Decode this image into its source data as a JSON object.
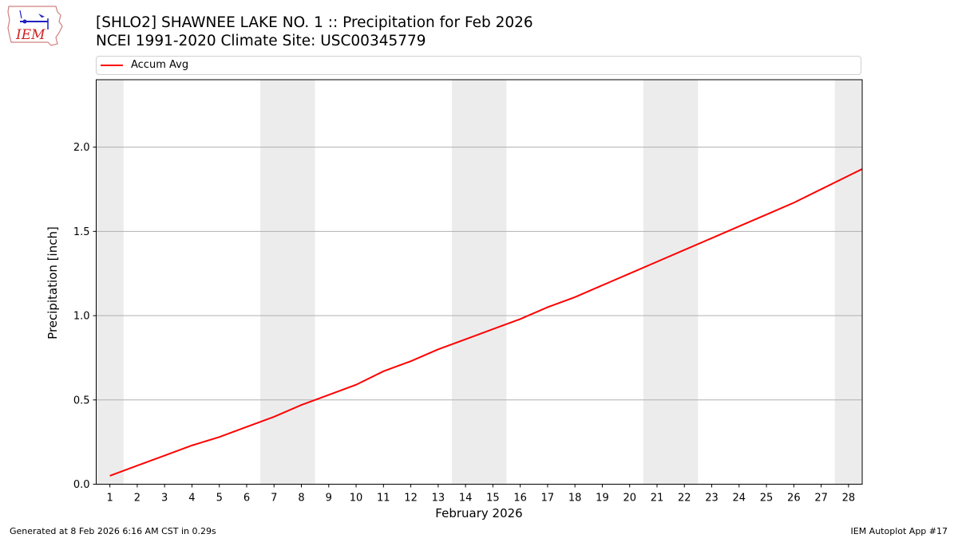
{
  "header": {
    "title_line1": "[SHLO2] SHAWNEE LAKE NO. 1 :: Precipitation for Feb 2026",
    "title_line2": "NCEI 1991-2020 Climate Site: USC00345779",
    "logo_text": "IEM"
  },
  "legend": {
    "items": [
      {
        "label": "Accum Avg",
        "color": "#ff0000"
      }
    ]
  },
  "footer": {
    "left": "Generated at 8 Feb 2026 6:16 AM CST in 0.29s",
    "right": "IEM Autoplot App #17"
  },
  "chart_data": {
    "type": "line",
    "title": "[SHLO2] SHAWNEE LAKE NO. 1 :: Precipitation for Feb 2026",
    "subtitle": "NCEI 1991-2020 Climate Site: USC00345779",
    "xlabel": "February 2026",
    "ylabel": "Precipitation [inch]",
    "x": [
      1,
      2,
      3,
      4,
      5,
      6,
      7,
      8,
      9,
      10,
      11,
      12,
      13,
      14,
      15,
      16,
      17,
      18,
      19,
      20,
      21,
      22,
      23,
      24,
      25,
      26,
      27,
      28
    ],
    "series": [
      {
        "name": "Accum Avg",
        "color": "#ff0000",
        "values": [
          0.05,
          0.11,
          0.17,
          0.23,
          0.28,
          0.34,
          0.4,
          0.47,
          0.53,
          0.59,
          0.67,
          0.73,
          0.8,
          0.86,
          0.92,
          0.98,
          1.05,
          1.11,
          1.18,
          1.25,
          1.32,
          1.39,
          1.46,
          1.53,
          1.6,
          1.67,
          1.75,
          1.83
        ]
      }
    ],
    "xlim": [
      0.5,
      28.5
    ],
    "ylim": [
      0.0,
      2.4
    ],
    "yticks": [
      "0.0",
      "0.5",
      "1.0",
      "1.5",
      "2.0"
    ],
    "xticks": [
      "1",
      "2",
      "3",
      "4",
      "5",
      "6",
      "7",
      "8",
      "9",
      "10",
      "11",
      "12",
      "13",
      "14",
      "15",
      "16",
      "17",
      "18",
      "19",
      "20",
      "21",
      "22",
      "23",
      "24",
      "25",
      "26",
      "27",
      "28"
    ],
    "weekend_shading": [
      [
        0.5,
        1.5
      ],
      [
        6.5,
        8.5
      ],
      [
        13.5,
        15.5
      ],
      [
        20.5,
        22.5
      ],
      [
        27.5,
        28.5
      ]
    ],
    "grid": "horizontal",
    "legend_position": "top"
  }
}
